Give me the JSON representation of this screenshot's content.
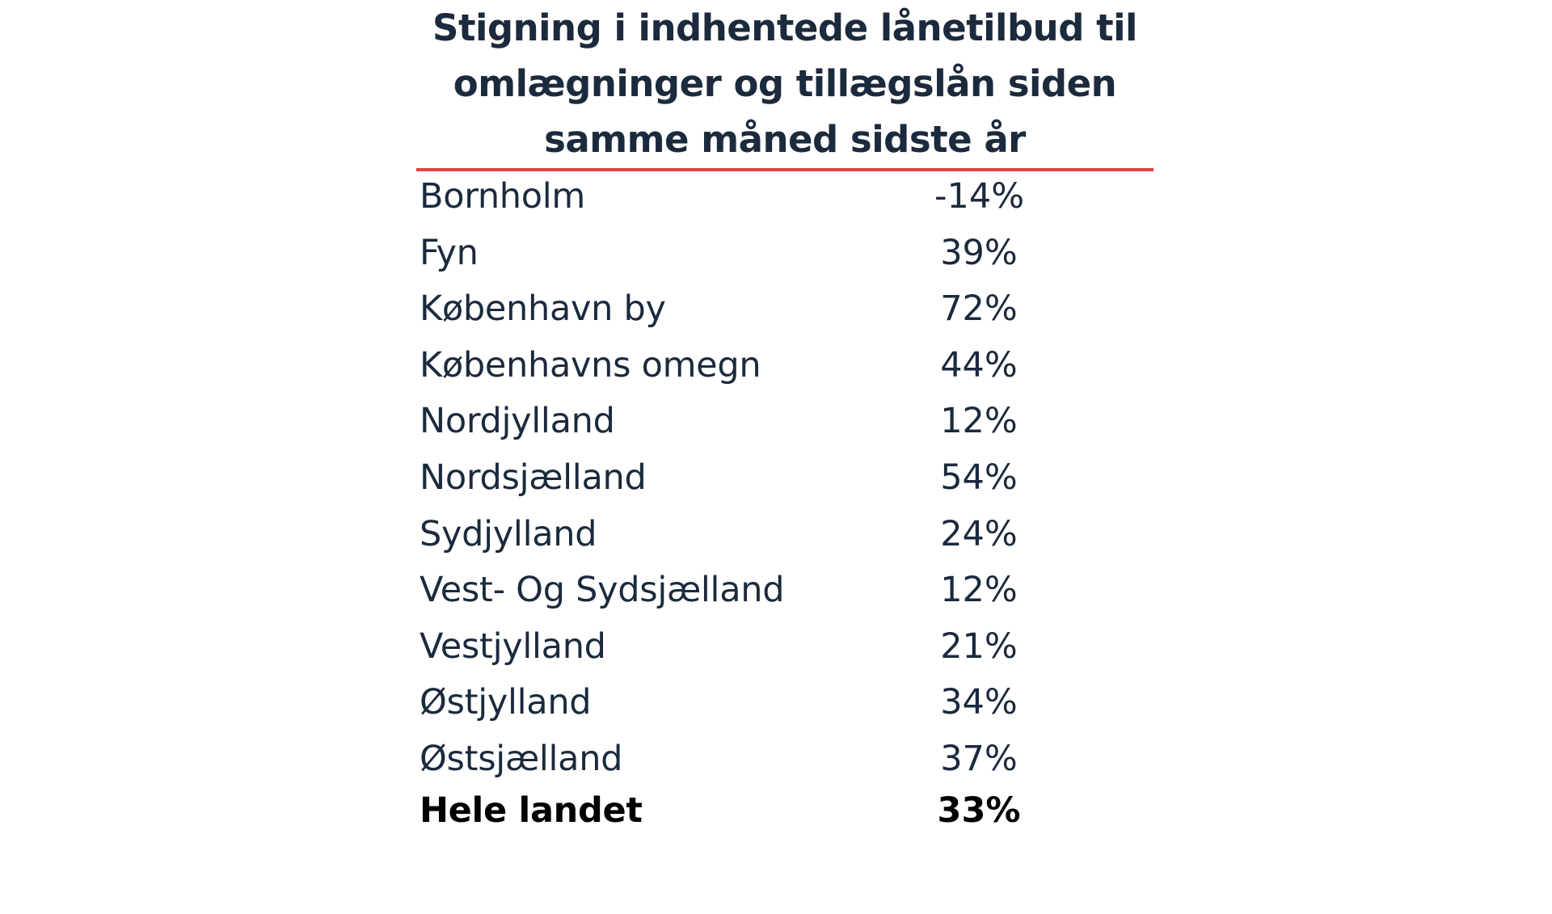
{
  "chart_data": {
    "type": "table",
    "title_lines": [
      "Stigning i indhentede lånetilbud til",
      "omlægninger og tillægslån siden",
      "samme måned sidste år"
    ],
    "rows": [
      {
        "label": "Bornholm",
        "value": -14,
        "display": "-14%"
      },
      {
        "label": "Fyn",
        "value": 39,
        "display": "39%"
      },
      {
        "label": "København by",
        "value": 72,
        "display": "72%"
      },
      {
        "label": "Københavns omegn",
        "value": 44,
        "display": "44%"
      },
      {
        "label": "Nordjylland",
        "value": 12,
        "display": "12%"
      },
      {
        "label": "Nordsjælland",
        "value": 54,
        "display": "54%"
      },
      {
        "label": "Sydjylland",
        "value": 24,
        "display": "24%"
      },
      {
        "label": "Vest- Og Sydsjælland",
        "value": 12,
        "display": "12%"
      },
      {
        "label": "Vestjylland",
        "value": 21,
        "display": "21%"
      },
      {
        "label": "Østjylland",
        "value": 34,
        "display": "34%"
      },
      {
        "label": "Østsjælland",
        "value": 37,
        "display": "37%"
      }
    ],
    "total": {
      "label": "Hele landet",
      "value": 33,
      "display": "33%"
    },
    "colors": {
      "title": "#1b2a3d",
      "rule": "#e0453f",
      "text": "#1b2a3d",
      "total_text": "#000000"
    }
  }
}
